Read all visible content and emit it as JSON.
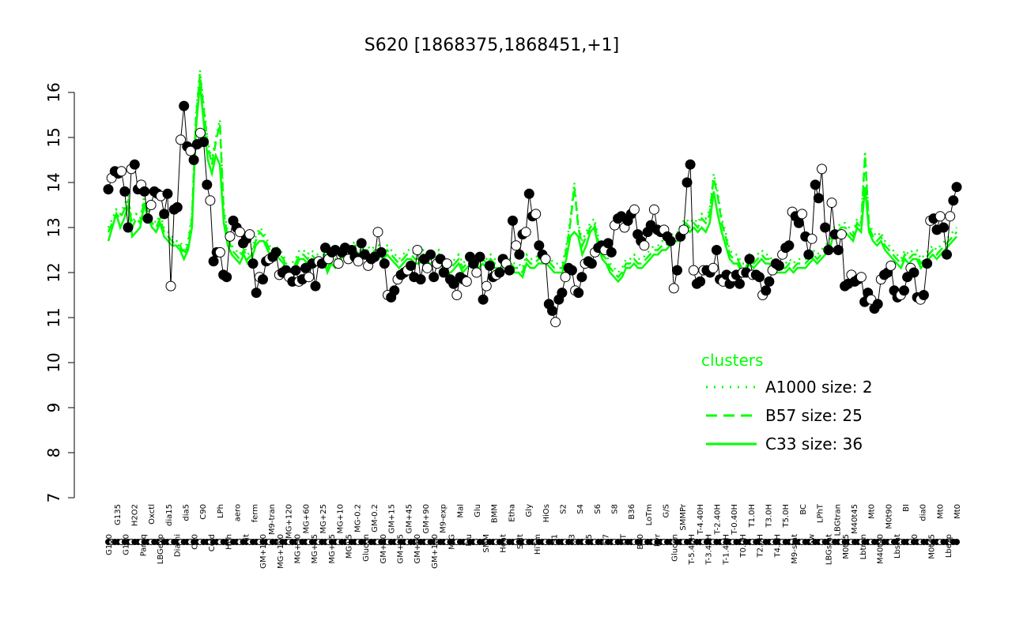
{
  "chart_data": {
    "type": "line",
    "title": "S620 [1868375,1868451,+1]",
    "xlabel": "",
    "ylabel": "",
    "ylim": [
      7,
      16.5
    ],
    "y_ticks": [
      7,
      8,
      9,
      10,
      11,
      12,
      13,
      14,
      15,
      16
    ],
    "x_tick_labels": [
      "G150",
      "G135",
      "G180",
      "H2O2",
      "Paraq",
      "Oxctl",
      "LBGexp",
      "dia15",
      "Diami",
      "dia5",
      "C30",
      "C90",
      "Cold",
      "LPh",
      "HPh",
      "aero",
      "nit",
      "ferm",
      "GM+150",
      "M9-tran",
      "MG+150",
      "MG+120",
      "MG+90",
      "MG+60",
      "MG+45",
      "MG+25",
      "MG+15",
      "MG+10",
      "MG+5",
      "MG-0.2",
      "Glucon",
      "GM-0.2",
      "GM+10",
      "GM+15",
      "GM+25",
      "GM+45",
      "GM+60",
      "GM+90",
      "GM+120",
      "M9-exp",
      "M/G",
      "Mal",
      "Fru",
      "Glu",
      "SMM",
      "BMM",
      "Heat",
      "Etha",
      "Salt",
      "Gly",
      "HiTm",
      "HiOs",
      "S1",
      "S2",
      "S3",
      "S4",
      "S5",
      "S6",
      "S7",
      "S8",
      "BT",
      "B36",
      "B60",
      "LoTm",
      "Pyr",
      "G/S",
      "Glucon",
      "SMMPr",
      "T-5.40H",
      "T-4.40H",
      "T-3.40H",
      "T-2.40H",
      "T-1.40H",
      "T-0.40H",
      "T0.0H",
      "T1.0H",
      "T2.0H",
      "T3.0H",
      "T4.0H",
      "T5.0H",
      "M9-stat",
      "BC",
      "Sw",
      "LPhT",
      "LBGstat",
      "LBGtran",
      "M0t45",
      "M40t45",
      "Lbtran",
      "Mt0",
      "M40t90",
      "M0t90",
      "Lbstat",
      "BI",
      "S0",
      "dia0",
      "M0t45",
      "Mt0",
      "Lbexp",
      "Mt0"
    ],
    "legend": {
      "title": "clusters",
      "placement": "right",
      "entries": [
        {
          "label": "A1000 size: 2",
          "style": "dotted"
        },
        {
          "label": "B57 size: 25",
          "style": "dashed"
        },
        {
          "label": "C33 size: 36",
          "style": "solid"
        }
      ]
    },
    "series": [
      {
        "values": [
          13.85,
          14.1,
          14.25,
          14.2,
          14.25,
          13.8,
          13.0,
          14.3,
          14.4,
          13.85,
          13.95,
          13.8,
          13.2,
          13.5,
          13.8,
          13.75,
          13.7,
          13.3,
          13.75,
          11.7,
          13.4,
          13.45,
          14.95,
          15.7,
          14.8,
          14.7,
          14.5,
          14.85,
          15.1,
          14.9,
          13.95,
          13.6,
          12.25,
          12.45,
          12.45,
          11.95,
          11.9,
          12.8,
          13.15,
          13.0,
          12.9,
          12.65,
          12.75,
          12.85,
          12.2,
          11.55,
          11.9,
          11.85,
          12.25,
          12.3,
          12.35,
          12.45,
          11.95,
          12.0,
          12.05,
          11.9,
          11.8,
          12.05,
          11.8,
          11.85,
          12.1,
          11.9,
          12.2,
          11.7,
          12.25,
          12.2,
          12.55,
          12.3,
          12.45,
          12.5,
          12.2,
          12.45,
          12.55,
          12.3,
          12.5,
          12.35,
          12.25,
          12.65,
          12.4,
          12.15,
          12.3,
          12.35,
          12.9,
          12.45,
          12.2,
          11.5,
          11.45,
          11.6,
          11.85,
          11.95,
          12.0,
          12.05,
          12.15,
          11.9,
          12.5,
          11.85,
          12.3,
          12.1,
          12.4,
          11.9,
          12.2,
          12.3,
          12.0,
          12.2,
          11.85,
          11.75,
          11.5,
          11.9,
          11.85,
          11.8,
          12.35,
          12.2,
          12.0,
          12.35,
          11.4,
          11.7,
          12.15,
          11.9,
          11.95,
          12.0,
          12.3,
          12.2,
          12.05,
          13.15,
          12.6,
          12.4,
          12.85,
          12.9,
          13.75,
          13.25,
          13.3,
          12.6,
          12.4,
          12.3,
          11.3,
          11.15,
          10.9,
          11.4,
          11.55,
          11.9,
          12.1,
          12.05,
          11.6,
          11.55,
          11.9,
          12.2,
          12.25,
          12.2,
          12.45,
          12.55,
          12.6,
          12.5,
          12.65,
          12.45,
          13.05,
          13.2,
          13.25,
          13.0,
          13.15,
          13.3,
          13.4,
          12.85,
          12.7,
          12.6,
          12.9,
          13.05,
          13.4,
          12.95,
          12.9,
          12.95,
          12.8,
          12.7,
          11.65,
          12.05,
          12.8,
          12.95,
          14.0,
          14.4,
          12.05,
          11.75,
          11.8,
          12.05,
          12.05,
          12.0,
          12.1,
          12.5,
          11.85,
          11.8,
          11.95,
          11.75,
          11.9,
          11.95,
          11.75,
          12.0,
          12.0,
          12.3,
          11.95,
          11.95,
          11.9,
          11.5,
          11.6,
          11.8,
          12.05,
          12.2,
          12.15,
          12.4,
          12.55,
          12.6,
          13.35,
          13.25,
          13.1,
          13.3,
          12.8,
          12.4,
          12.75,
          13.95,
          13.65,
          14.3,
          13.0,
          12.5,
          13.55,
          12.85,
          12.5,
          12.85,
          11.7,
          11.75,
          11.95,
          11.8,
          11.85,
          11.9,
          11.35,
          11.55,
          11.4,
          11.2,
          11.3,
          11.85,
          11.95,
          12.0,
          12.15,
          11.6,
          11.45,
          11.5,
          11.6,
          11.9,
          12.1,
          12.0,
          11.45,
          11.4,
          11.5,
          12.2,
          13.15,
          13.2,
          12.95,
          13.25,
          13.0,
          12.4,
          13.25,
          13.6,
          13.9
        ]
      },
      {
        "name": "C33",
        "style": "solid",
        "values": [
          12.7,
          13.0,
          13.3,
          13.0,
          13.2,
          13.5,
          12.8,
          12.9,
          13.0,
          13.5,
          13.2,
          13.0,
          12.9,
          13.1,
          12.8,
          12.7,
          12.6,
          12.6,
          12.5,
          12.3,
          12.5,
          13.0,
          15.2,
          16.2,
          15.3,
          14.5,
          14.2,
          14.6,
          14.4,
          13.1,
          12.6,
          12.4,
          12.3,
          12.2,
          12.4,
          12.2,
          12.3,
          12.6,
          12.7,
          12.7,
          12.5,
          12.3,
          12.4,
          12.3,
          12.2,
          11.9,
          12.0,
          12.1,
          12.3,
          12.3,
          12.2,
          12.3,
          12.2,
          12.2,
          12.3,
          12.0,
          12.2,
          12.1,
          12.2,
          12.4,
          12.3,
          12.4,
          12.5,
          12.4,
          12.4,
          12.4,
          12.3,
          12.4,
          12.4,
          12.3,
          12.4,
          12.3,
          12.2,
          12.1,
          12.2,
          12.3,
          12.3,
          12.2,
          12.2,
          12.3,
          12.2,
          12.2,
          12.2,
          12.3,
          12.1,
          12.0,
          12.0,
          12.1,
          12.2,
          12.0,
          12.1,
          12.2,
          12.1,
          12.1,
          12.2,
          12.1,
          12.2,
          12.1,
          12.1,
          12.1,
          12.2,
          12.1,
          12.0,
          12.0,
          11.9,
          12.2,
          12.1,
          12.1,
          12.2,
          12.2,
          12.2,
          12.1,
          12.0,
          12.0,
          12.0,
          12.3,
          12.8,
          12.9,
          12.8,
          12.4,
          12.6,
          12.9,
          13.0,
          12.6,
          12.3,
          12.2,
          12.0,
          11.9,
          11.8,
          11.9,
          12.1,
          12.1,
          12.2,
          12.1,
          12.1,
          12.2,
          12.3,
          12.4,
          12.4,
          12.5,
          12.5,
          12.6,
          12.7,
          12.7,
          12.9,
          13.0,
          12.9,
          13.0,
          12.9,
          13.0,
          12.9,
          13.1,
          13.8,
          13.3,
          12.9,
          12.6,
          12.3,
          12.2,
          12.2,
          12.0,
          12.0,
          12.2,
          12.1,
          12.2,
          12.3,
          12.2,
          12.2,
          12.0,
          12.0,
          12.0,
          12.0,
          12.1,
          12.0,
          12.1,
          12.1,
          12.1,
          12.2,
          12.3,
          12.2,
          12.3,
          12.4,
          12.5,
          12.8,
          12.8,
          12.9,
          12.9,
          12.8,
          12.7,
          13.0,
          12.9,
          13.9,
          12.9,
          12.7,
          12.6,
          12.7,
          12.5,
          12.4,
          12.3,
          12.2,
          12.1,
          12.3,
          12.2,
          12.3,
          12.3,
          12.1,
          12.2,
          12.3,
          12.4,
          12.3,
          12.4,
          12.5,
          12.6,
          12.7,
          12.8
        ]
      },
      {
        "name": "B57",
        "style": "dashed",
        "values": [
          12.9,
          13.1,
          13.3,
          13.2,
          13.4,
          13.6,
          13.0,
          13.2,
          13.1,
          13.6,
          13.3,
          13.1,
          13.0,
          13.2,
          12.9,
          12.8,
          12.7,
          12.6,
          12.6,
          12.4,
          12.6,
          13.2,
          15.4,
          16.4,
          15.6,
          14.8,
          14.4,
          14.9,
          15.3,
          13.3,
          12.8,
          12.5,
          12.4,
          12.3,
          12.5,
          12.3,
          12.4,
          12.7,
          12.9,
          12.8,
          12.6,
          12.4,
          12.5,
          12.4,
          12.3,
          12.0,
          12.1,
          12.2,
          12.4,
          12.4,
          12.3,
          12.4,
          12.3,
          12.3,
          12.4,
          12.1,
          12.3,
          12.2,
          12.3,
          12.5,
          12.4,
          12.5,
          12.6,
          12.5,
          12.5,
          12.5,
          12.4,
          12.5,
          12.5,
          12.4,
          12.5,
          12.4,
          12.3,
          12.2,
          12.3,
          12.4,
          12.4,
          12.3,
          12.3,
          12.4,
          12.3,
          12.3,
          12.3,
          12.4,
          12.2,
          12.1,
          12.1,
          12.2,
          12.3,
          12.1,
          12.2,
          12.3,
          12.2,
          12.2,
          12.3,
          12.2,
          12.3,
          12.2,
          12.2,
          12.2,
          12.3,
          12.2,
          12.1,
          12.1,
          12.0,
          12.3,
          12.2,
          12.2,
          12.3,
          12.3,
          12.3,
          12.2,
          12.1,
          12.1,
          12.1,
          12.5,
          13.1,
          13.9,
          13.0,
          12.6,
          12.8,
          13.0,
          13.1,
          12.7,
          12.4,
          12.3,
          12.1,
          12.0,
          11.9,
          12.0,
          12.2,
          12.2,
          12.3,
          12.2,
          12.2,
          12.3,
          12.4,
          12.5,
          12.5,
          12.6,
          12.6,
          12.7,
          12.8,
          12.8,
          13.0,
          13.1,
          13.0,
          13.1,
          13.0,
          13.2,
          13.1,
          13.3,
          14.1,
          13.7,
          13.1,
          12.8,
          12.4,
          12.3,
          12.3,
          12.1,
          12.1,
          12.3,
          12.2,
          12.3,
          12.4,
          12.3,
          12.3,
          12.1,
          12.1,
          12.1,
          12.1,
          12.2,
          12.1,
          12.2,
          12.2,
          12.2,
          12.3,
          12.4,
          12.3,
          12.4,
          12.5,
          12.6,
          12.9,
          12.9,
          13.0,
          13.0,
          12.9,
          12.8,
          13.1,
          13.0,
          14.6,
          13.0,
          12.8,
          12.7,
          12.8,
          12.6,
          12.5,
          12.4,
          12.3,
          12.2,
          12.4,
          12.3,
          12.4,
          12.4,
          12.2,
          12.3,
          12.4,
          12.5,
          12.4,
          12.5,
          12.6,
          12.7,
          12.8,
          12.9
        ]
      },
      {
        "name": "A1000",
        "style": "dotted",
        "values": [
          13.0,
          13.2,
          13.4,
          13.3,
          13.5,
          13.7,
          13.1,
          13.3,
          13.2,
          13.7,
          13.4,
          13.2,
          13.1,
          13.3,
          13.0,
          12.9,
          12.8,
          12.7,
          12.7,
          12.5,
          12.7,
          13.3,
          15.5,
          16.5,
          15.7,
          14.9,
          14.5,
          15.0,
          15.4,
          13.4,
          12.9,
          12.6,
          12.5,
          12.4,
          12.6,
          12.4,
          12.5,
          12.8,
          13.0,
          12.9,
          12.7,
          12.5,
          12.6,
          12.5,
          12.4,
          12.1,
          12.2,
          12.3,
          12.5,
          12.5,
          12.4,
          12.5,
          12.4,
          12.4,
          12.5,
          12.2,
          12.4,
          12.3,
          12.4,
          12.6,
          12.5,
          12.6,
          12.7,
          12.6,
          12.6,
          12.6,
          12.5,
          12.6,
          12.6,
          12.5,
          12.6,
          12.5,
          12.4,
          12.3,
          12.4,
          12.5,
          12.5,
          12.4,
          12.4,
          12.5,
          12.4,
          12.4,
          12.4,
          12.5,
          12.3,
          12.2,
          12.2,
          12.3,
          12.4,
          12.2,
          12.3,
          12.4,
          12.3,
          12.3,
          12.4,
          12.3,
          12.4,
          12.3,
          12.3,
          12.3,
          12.4,
          12.3,
          12.2,
          12.2,
          12.1,
          12.4,
          12.3,
          12.3,
          12.4,
          12.4,
          12.4,
          12.3,
          12.2,
          12.2,
          12.2,
          12.6,
          13.2,
          14.0,
          13.1,
          12.7,
          12.9,
          13.1,
          13.2,
          12.8,
          12.5,
          12.4,
          12.2,
          12.1,
          12.0,
          12.1,
          12.3,
          12.3,
          12.4,
          12.3,
          12.3,
          12.4,
          12.5,
          12.6,
          12.6,
          12.7,
          12.7,
          12.8,
          12.9,
          12.9,
          13.1,
          13.2,
          13.1,
          13.2,
          13.1,
          13.3,
          13.2,
          13.4,
          14.2,
          13.8,
          13.2,
          12.9,
          12.5,
          12.4,
          12.4,
          12.2,
          12.2,
          12.4,
          12.3,
          12.4,
          12.5,
          12.4,
          12.4,
          12.2,
          12.2,
          12.2,
          12.2,
          12.3,
          12.2,
          12.3,
          12.3,
          12.3,
          12.4,
          12.5,
          12.4,
          12.5,
          12.6,
          12.7,
          13.0,
          13.0,
          13.1,
          13.1,
          13.0,
          12.9,
          13.2,
          13.1,
          14.7,
          13.1,
          12.9,
          12.8,
          12.9,
          12.7,
          12.6,
          12.5,
          12.4,
          12.3,
          12.5,
          12.4,
          12.5,
          12.5,
          12.3,
          12.4,
          12.5,
          12.6,
          12.5,
          12.6,
          12.7,
          12.8,
          12.9,
          13.0
        ]
      }
    ],
    "colors": {
      "clusters": "#00ff00",
      "points_filled": "#000000",
      "points_open": "#ffffff"
    }
  }
}
